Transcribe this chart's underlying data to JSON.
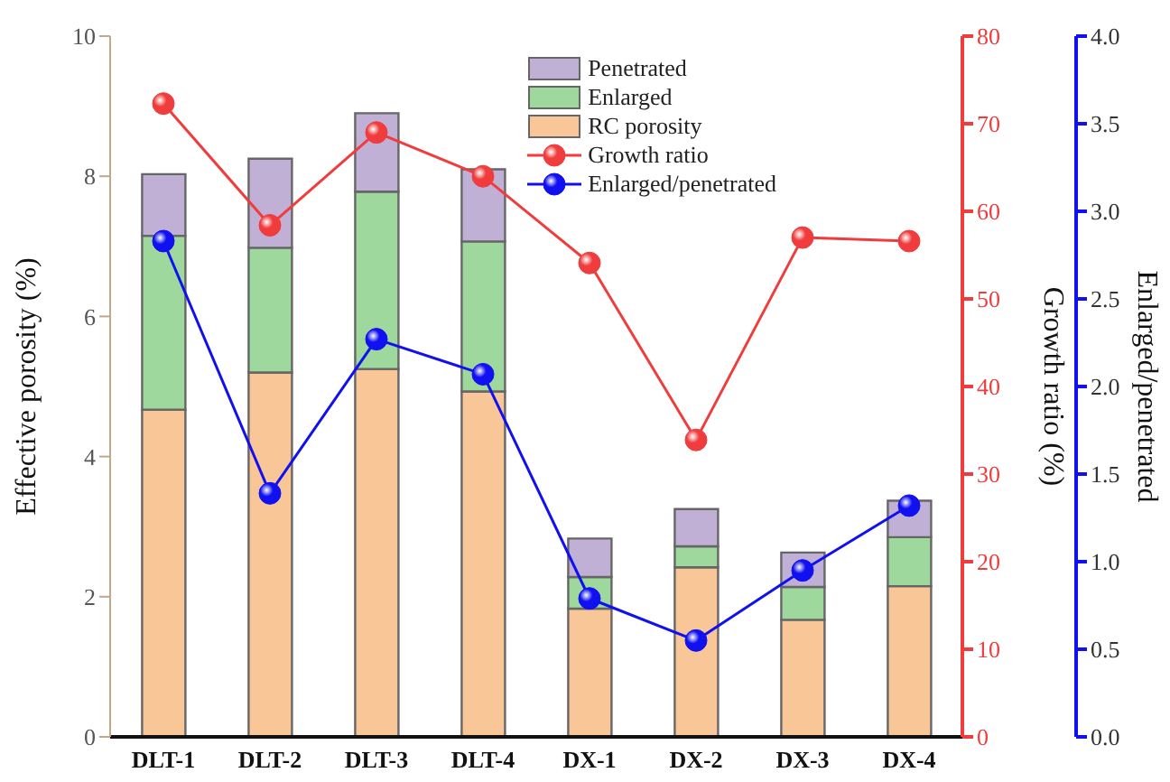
{
  "chart_data": {
    "type": "bar",
    "stacked": true,
    "categories": [
      "DLT-1",
      "DLT-2",
      "DLT-3",
      "DLT-4",
      "DX-1",
      "DX-2",
      "DX-3",
      "DX-4"
    ],
    "ylabel": "Effective porosity (%)",
    "y2label": "Growth ratio (%)",
    "y3label": "Enlarged/penetrated",
    "ylim": [
      0,
      10
    ],
    "yticks": [
      0,
      2,
      4,
      6,
      8,
      10
    ],
    "y2lim": [
      0,
      80
    ],
    "y2ticks": [
      0,
      10,
      20,
      30,
      40,
      50,
      60,
      70,
      80
    ],
    "y3lim": [
      0,
      4
    ],
    "y3ticks": [
      {
        "value": 0,
        "label": "0.0"
      },
      {
        "value": 0.5,
        "label": "0.5"
      },
      {
        "value": 1,
        "label": "1.0"
      },
      {
        "value": 1.5,
        "label": "1.5"
      },
      {
        "value": 2,
        "label": "2.0"
      },
      {
        "value": 2.5,
        "label": "2.5"
      },
      {
        "value": 3,
        "label": "3.0"
      },
      {
        "value": 3.5,
        "label": "3.5"
      },
      {
        "value": 4,
        "label": "4.0"
      }
    ],
    "legend": "top right",
    "marker": "circle",
    "grid": false,
    "series": [
      {
        "name": "RC porosity",
        "color": "#f9c797",
        "values": [
          4.67,
          5.2,
          5.25,
          4.93,
          1.83,
          2.42,
          1.67,
          2.15
        ]
      },
      {
        "name": "Enlarged",
        "color": "#9ed89c",
        "values": [
          2.48,
          1.78,
          2.53,
          2.14,
          0.45,
          0.3,
          0.47,
          0.7
        ]
      },
      {
        "name": "Penetrated",
        "color": "#c1b0d6",
        "values": [
          0.88,
          1.27,
          1.12,
          1.03,
          0.55,
          0.53,
          0.49,
          0.52
        ]
      },
      {
        "name": "Growth ratio",
        "type": "line",
        "axis": "y2",
        "color": "#f03c3c",
        "values": [
          72.3,
          58.4,
          69,
          64,
          54.1,
          33.9,
          57,
          56.6
        ]
      },
      {
        "name": "Enlarged/penetrated",
        "type": "line",
        "axis": "y3",
        "color": "#1010f0",
        "values": [
          2.83,
          1.39,
          2.27,
          2.07,
          0.79,
          0.55,
          0.95,
          1.32
        ]
      }
    ]
  }
}
